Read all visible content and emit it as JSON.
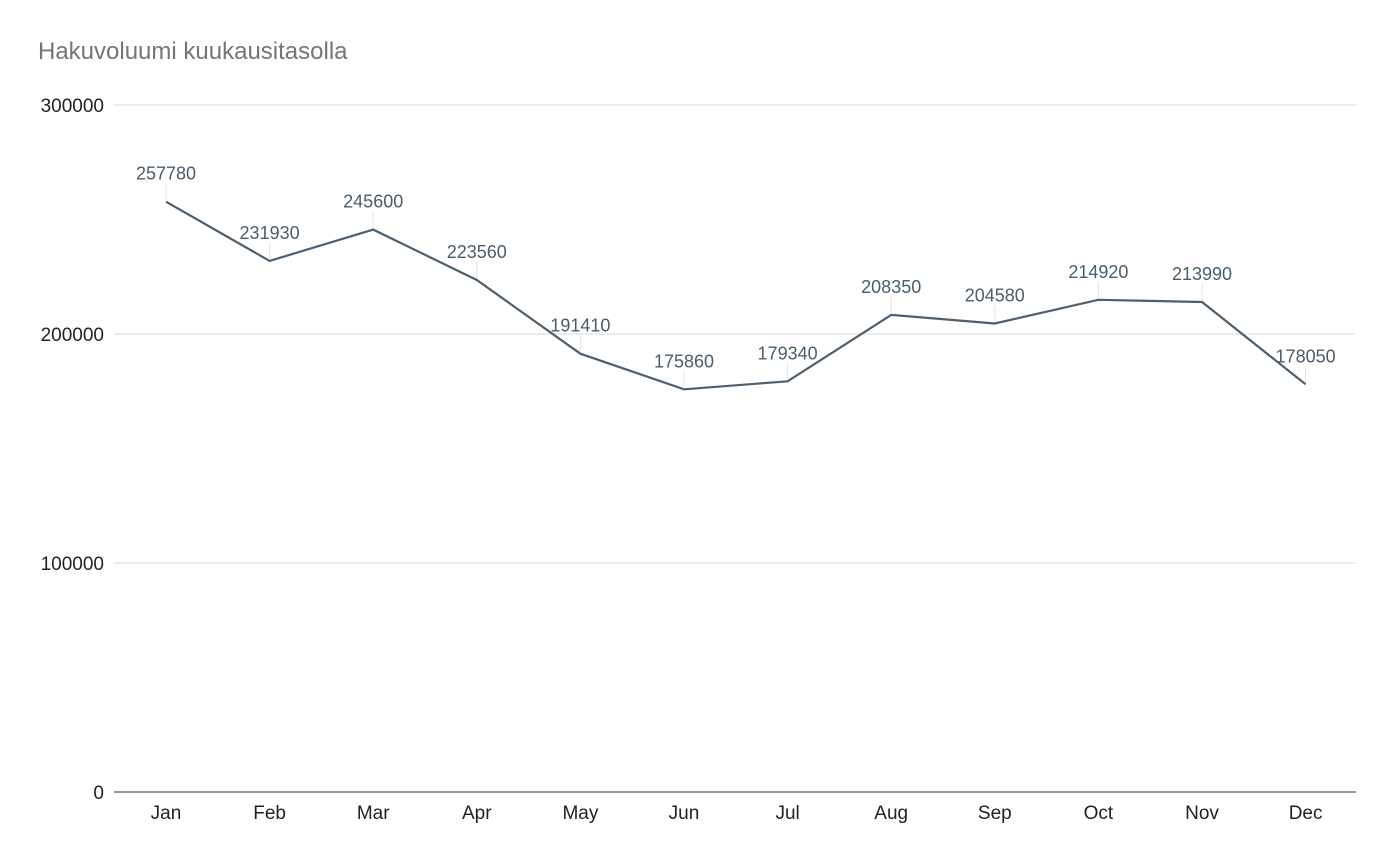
{
  "chart_data": {
    "type": "line",
    "title": "Hakuvoluumi kuukausitasolla",
    "xlabel": "",
    "ylabel": "",
    "categories": [
      "Jan",
      "Feb",
      "Mar",
      "Apr",
      "May",
      "Jun",
      "Jul",
      "Aug",
      "Sep",
      "Oct",
      "Nov",
      "Dec"
    ],
    "series": [
      {
        "values": [
          257780,
          231930,
          245600,
          223560,
          191410,
          175860,
          179340,
          208350,
          204580,
          214920,
          213990,
          178050
        ],
        "color": "#4e5f6d"
      }
    ],
    "ylim": [
      0,
      300000
    ],
    "yticks": [
      0,
      100000,
      200000,
      300000
    ],
    "grid": true,
    "legend": "none",
    "data_labels": true
  }
}
